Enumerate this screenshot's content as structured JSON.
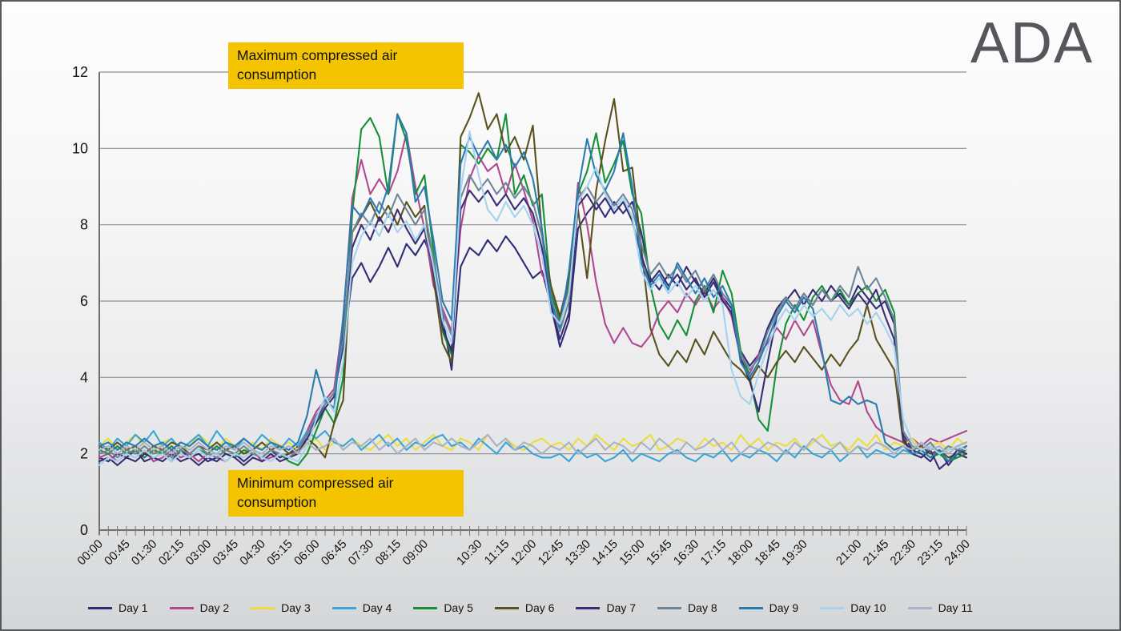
{
  "logo": "ADA",
  "annotations": {
    "max_label": "Maximum compressed air consumption",
    "min_label": "Minimum compressed air consumption"
  },
  "chart_data": {
    "type": "line",
    "title": "",
    "xlabel": "",
    "ylabel": "",
    "ylim": [
      0,
      12
    ],
    "y_ticks": [
      0,
      2,
      4,
      6,
      8,
      10,
      12
    ],
    "grid": true,
    "legend_position": "bottom",
    "x_points": 97,
    "x_tick_interval_minutes": 15,
    "x_labels": [
      "00:00",
      "00:45",
      "01:30",
      "02:15",
      "03:00",
      "03:45",
      "04:30",
      "05:15",
      "06:00",
      "06:45",
      "07:30",
      "08:15",
      "09:00",
      "10:30",
      "11:15",
      "12:00",
      "12:45",
      "13:30",
      "14:15",
      "15:00",
      "15:45",
      "16:30",
      "17:15",
      "18:00",
      "18:45",
      "19:30",
      "21:00",
      "21:45",
      "22:30",
      "23:15",
      "24:00"
    ],
    "x_label_positions": [
      0,
      3,
      6,
      9,
      12,
      15,
      18,
      21,
      24,
      27,
      30,
      33,
      36,
      42,
      45,
      48,
      51,
      54,
      57,
      60,
      63,
      66,
      69,
      72,
      75,
      78,
      84,
      87,
      90,
      93,
      96
    ],
    "series": [
      {
        "name": "Day 1",
        "color": "#2e2e78",
        "values": [
          1.9,
          1.8,
          2.0,
          1.9,
          2.1,
          1.8,
          1.9,
          2.0,
          1.8,
          2.1,
          1.9,
          2.0,
          1.8,
          1.9,
          2.1,
          2.0,
          1.8,
          2.0,
          1.9,
          2.1,
          1.9,
          2.0,
          2.2,
          2.5,
          2.9,
          3.3,
          3.6,
          4.8,
          6.6,
          7.0,
          6.5,
          6.9,
          7.4,
          6.9,
          7.5,
          7.2,
          7.6,
          7.0,
          5.6,
          4.2,
          6.9,
          7.4,
          7.2,
          7.6,
          7.3,
          7.7,
          7.4,
          7.0,
          6.6,
          6.8,
          5.9,
          4.8,
          5.5,
          7.9,
          8.3,
          8.6,
          8.2,
          8.6,
          8.3,
          8.6,
          7.8,
          6.6,
          6.3,
          6.7,
          6.4,
          6.9,
          6.5,
          6.2,
          6.6,
          6.1,
          5.8,
          4.7,
          4.3,
          4.6,
          5.3,
          5.8,
          6.1,
          5.8,
          6.2,
          5.9,
          6.3,
          6.0,
          6.2,
          5.9,
          6.4,
          6.1,
          5.8,
          6.0,
          5.4,
          2.5,
          2.1,
          2.0,
          1.8,
          2.1,
          1.7,
          2.0,
          1.9
        ]
      },
      {
        "name": "Day 2",
        "color": "#b0488f",
        "values": [
          1.9,
          2.0,
          1.8,
          2.0,
          1.9,
          2.1,
          1.8,
          1.9,
          2.1,
          1.9,
          2.0,
          1.8,
          2.0,
          1.9,
          1.8,
          2.0,
          1.9,
          2.1,
          1.8,
          1.9,
          2.0,
          1.9,
          2.1,
          2.6,
          3.1,
          3.4,
          3.7,
          5.5,
          8.7,
          9.7,
          8.8,
          9.2,
          8.8,
          9.4,
          10.4,
          9.0,
          7.9,
          6.4,
          5.8,
          5.2,
          7.9,
          9.2,
          9.8,
          9.4,
          9.6,
          8.8,
          9.6,
          8.9,
          8.1,
          6.7,
          6.3,
          5.4,
          6.4,
          9.1,
          8.0,
          6.5,
          5.4,
          4.9,
          5.3,
          4.9,
          4.8,
          5.1,
          5.7,
          6.0,
          5.7,
          6.2,
          5.9,
          6.3,
          5.8,
          6.1,
          5.6,
          4.5,
          4.1,
          4.6,
          4.9,
          5.3,
          5.0,
          5.5,
          5.1,
          5.5,
          4.6,
          3.8,
          3.4,
          3.3,
          3.9,
          3.1,
          2.7,
          2.5,
          2.4,
          2.3,
          2.4,
          2.2,
          2.4,
          2.3,
          2.4,
          2.5,
          2.6
        ]
      },
      {
        "name": "Day 3",
        "color": "#ecdd3c",
        "values": [
          2.2,
          2.4,
          2.1,
          2.3,
          2.5,
          2.2,
          2.0,
          2.3,
          2.4,
          2.1,
          2.2,
          2.5,
          2.3,
          2.1,
          2.4,
          2.2,
          2.0,
          2.3,
          2.1,
          2.4,
          2.2,
          2.3,
          2.1,
          2.2,
          2.4,
          2.1,
          2.3,
          2.2,
          2.4,
          2.2,
          2.1,
          2.3,
          2.5,
          2.2,
          2.4,
          2.1,
          2.3,
          2.5,
          2.2,
          2.1,
          2.4,
          2.3,
          2.1,
          2.5,
          2.2,
          2.4,
          2.2,
          2.1,
          2.3,
          2.4,
          2.2,
          2.3,
          2.1,
          2.4,
          2.2,
          2.5,
          2.3,
          2.1,
          2.4,
          2.2,
          2.3,
          2.5,
          2.1,
          2.2,
          2.4,
          2.3,
          2.1,
          2.4,
          2.2,
          2.3,
          2.1,
          2.5,
          2.2,
          2.4,
          2.1,
          2.3,
          2.2,
          2.4,
          2.1,
          2.3,
          2.5,
          2.2,
          2.3,
          2.1,
          2.4,
          2.2,
          2.5,
          2.1,
          2.3,
          2.2,
          2.4,
          2.1,
          2.2,
          2.3,
          2.1,
          2.4,
          2.2
        ]
      },
      {
        "name": "Day 4",
        "color": "#3ba4d8",
        "values": [
          2.3,
          2.1,
          2.4,
          2.2,
          2.5,
          2.3,
          2.6,
          2.2,
          2.4,
          2.1,
          2.3,
          2.5,
          2.2,
          2.6,
          2.3,
          2.1,
          2.4,
          2.2,
          2.5,
          2.3,
          2.1,
          2.4,
          2.2,
          2.6,
          2.4,
          2.6,
          2.3,
          2.2,
          2.4,
          2.1,
          2.3,
          2.5,
          2.2,
          2.4,
          2.1,
          2.3,
          2.2,
          2.4,
          2.5,
          2.2,
          2.3,
          2.1,
          2.4,
          2.2,
          2.0,
          2.3,
          2.1,
          2.2,
          2.0,
          1.9,
          1.9,
          2.0,
          1.8,
          2.1,
          1.9,
          2.0,
          1.8,
          1.9,
          2.1,
          1.8,
          2.0,
          1.9,
          1.8,
          2.0,
          2.1,
          1.9,
          1.8,
          2.0,
          1.9,
          2.1,
          1.8,
          2.0,
          1.9,
          2.1,
          2.0,
          1.8,
          2.1,
          1.9,
          2.2,
          2.0,
          1.9,
          2.1,
          1.8,
          2.0,
          2.2,
          1.9,
          2.1,
          2.0,
          1.9,
          2.1,
          2.0,
          1.9,
          2.2,
          2.0,
          2.1,
          2.2,
          2.3
        ]
      },
      {
        "name": "Day 5",
        "color": "#169038",
        "values": [
          2.1,
          2.0,
          2.2,
          2.0,
          2.1,
          1.9,
          2.1,
          2.0,
          2.2,
          2.0,
          1.9,
          2.1,
          2.0,
          2.2,
          2.0,
          1.9,
          2.1,
          2.0,
          1.9,
          2.1,
          2.0,
          1.8,
          1.7,
          2.0,
          2.6,
          3.2,
          2.8,
          4.0,
          8.3,
          10.5,
          10.8,
          10.3,
          8.8,
          10.9,
          10.2,
          8.8,
          9.3,
          7.3,
          5.2,
          4.6,
          10.1,
          9.9,
          9.6,
          10.0,
          9.7,
          10.9,
          8.8,
          9.3,
          8.5,
          8.8,
          6.2,
          5.5,
          6.5,
          8.8,
          9.4,
          10.4,
          9.1,
          9.6,
          10.2,
          8.8,
          8.3,
          6.4,
          5.4,
          5.0,
          5.5,
          5.1,
          6.0,
          6.4,
          5.7,
          6.8,
          6.2,
          4.7,
          4.0,
          2.9,
          2.6,
          4.3,
          5.4,
          5.9,
          5.5,
          6.1,
          6.4,
          6.0,
          6.3,
          5.9,
          6.2,
          6.4,
          6.0,
          6.3,
          5.7,
          2.4,
          2.0,
          2.1,
          1.9,
          2.0,
          1.8,
          1.9,
          2.0
        ]
      },
      {
        "name": "Day 6",
        "color": "#5a521e",
        "values": [
          2.2,
          2.1,
          2.3,
          2.1,
          2.2,
          2.0,
          2.2,
          2.1,
          2.3,
          2.2,
          2.0,
          2.2,
          2.1,
          2.3,
          2.1,
          2.2,
          2.0,
          2.1,
          2.3,
          2.1,
          2.2,
          2.0,
          2.1,
          2.4,
          2.2,
          1.9,
          2.8,
          3.4,
          7.8,
          8.2,
          8.6,
          8.1,
          8.5,
          8.0,
          8.6,
          8.2,
          8.5,
          6.6,
          4.9,
          4.4,
          10.3,
          10.8,
          11.45,
          10.5,
          10.9,
          9.9,
          10.3,
          9.7,
          10.6,
          7.8,
          6.4,
          5.6,
          6.6,
          8.4,
          6.6,
          8.9,
          10.2,
          11.3,
          9.4,
          9.5,
          7.4,
          5.3,
          4.6,
          4.3,
          4.7,
          4.4,
          5.0,
          4.6,
          5.2,
          4.8,
          4.4,
          4.2,
          3.9,
          4.3,
          4.0,
          4.4,
          4.7,
          4.4,
          4.8,
          4.5,
          4.2,
          4.6,
          4.3,
          4.7,
          5.0,
          5.9,
          5.0,
          4.6,
          4.2,
          2.3,
          2.1,
          2.2,
          2.0,
          2.1,
          1.9,
          2.0,
          2.1
        ]
      },
      {
        "name": "Day 7",
        "color": "#382c74",
        "values": [
          1.8,
          1.9,
          1.7,
          1.9,
          1.8,
          2.0,
          1.9,
          1.8,
          2.0,
          1.8,
          1.9,
          1.7,
          1.9,
          1.8,
          2.0,
          1.9,
          1.7,
          1.9,
          1.8,
          2.0,
          1.8,
          1.9,
          2.0,
          2.4,
          2.8,
          3.2,
          3.5,
          5.2,
          7.4,
          8.0,
          7.6,
          8.2,
          7.8,
          8.4,
          7.9,
          7.5,
          7.9,
          6.8,
          5.3,
          4.7,
          8.4,
          8.9,
          8.6,
          8.9,
          8.5,
          8.8,
          8.4,
          8.7,
          8.3,
          7.4,
          5.9,
          5.0,
          5.7,
          8.5,
          8.8,
          8.4,
          8.7,
          8.3,
          8.6,
          8.1,
          7.2,
          6.5,
          6.8,
          6.4,
          6.7,
          6.3,
          6.6,
          6.1,
          6.5,
          6.0,
          5.7,
          4.5,
          3.9,
          3.1,
          4.4,
          5.6,
          6.0,
          6.3,
          5.9,
          6.3,
          6.0,
          6.4,
          6.1,
          5.8,
          6.2,
          5.9,
          6.3,
          5.6,
          5.0,
          2.4,
          2.0,
          1.9,
          2.1,
          1.6,
          1.8,
          2.1,
          2.0
        ]
      },
      {
        "name": "Day 8",
        "color": "#6d8598",
        "values": [
          2.0,
          2.1,
          1.9,
          2.1,
          2.0,
          2.2,
          2.0,
          2.1,
          1.9,
          2.1,
          2.0,
          2.2,
          2.0,
          1.9,
          2.1,
          2.0,
          2.2,
          2.0,
          1.9,
          2.1,
          2.0,
          1.9,
          2.1,
          2.5,
          3.0,
          3.3,
          3.6,
          5.0,
          7.8,
          8.3,
          8.0,
          8.6,
          8.2,
          8.8,
          8.4,
          8.0,
          8.4,
          7.1,
          5.7,
          5.1,
          8.7,
          9.3,
          8.9,
          9.2,
          8.8,
          9.1,
          8.7,
          9.0,
          8.6,
          7.7,
          6.1,
          5.2,
          6.0,
          8.7,
          9.0,
          8.6,
          8.9,
          8.5,
          8.8,
          8.4,
          7.5,
          6.7,
          7.0,
          6.6,
          6.9,
          6.5,
          6.8,
          6.3,
          6.7,
          6.2,
          5.9,
          4.6,
          4.2,
          4.5,
          5.2,
          5.7,
          6.1,
          5.8,
          6.2,
          5.9,
          6.3,
          6.0,
          6.4,
          6.1,
          6.9,
          6.3,
          6.6,
          6.1,
          5.5,
          2.6,
          2.2,
          2.1,
          2.3,
          2.0,
          2.2,
          2.1,
          2.2
        ]
      },
      {
        "name": "Day 9",
        "color": "#2a7cb0",
        "values": [
          2.2,
          2.3,
          2.1,
          2.3,
          2.2,
          2.4,
          2.2,
          2.3,
          2.1,
          2.3,
          2.2,
          2.4,
          2.2,
          2.1,
          2.3,
          2.2,
          2.4,
          2.2,
          2.1,
          2.3,
          2.2,
          2.1,
          2.3,
          3.0,
          4.2,
          3.4,
          3.2,
          5.6,
          8.5,
          8.2,
          8.7,
          8.3,
          9.0,
          10.9,
          10.4,
          8.6,
          9.0,
          7.6,
          6.0,
          5.5,
          9.6,
          10.3,
          9.8,
          10.2,
          9.7,
          10.1,
          9.5,
          9.9,
          9.2,
          7.9,
          6.0,
          5.3,
          6.8,
          8.9,
          10.25,
          9.3,
          8.9,
          9.4,
          10.4,
          9.0,
          7.0,
          6.4,
          6.7,
          6.3,
          7.0,
          6.6,
          6.2,
          6.6,
          6.1,
          6.4,
          5.9,
          4.4,
          4.0,
          4.4,
          5.0,
          5.6,
          6.0,
          5.7,
          6.1,
          5.8,
          4.7,
          3.4,
          3.3,
          3.5,
          3.3,
          3.4,
          3.3,
          2.3,
          2.1,
          2.2,
          2.0,
          2.1,
          1.9,
          2.1,
          1.8,
          2.0,
          2.2
        ]
      },
      {
        "name": "Day 10",
        "color": "#a5d2ee",
        "values": [
          1.7,
          1.9,
          1.8,
          2.0,
          1.9,
          2.1,
          1.9,
          2.0,
          1.8,
          2.0,
          1.9,
          2.1,
          1.9,
          2.0,
          1.8,
          2.0,
          1.9,
          2.1,
          1.9,
          1.8,
          2.0,
          1.9,
          1.8,
          2.2,
          2.9,
          3.5,
          3.1,
          4.4,
          7.0,
          7.7,
          8.1,
          7.7,
          8.3,
          7.8,
          8.1,
          7.6,
          8.0,
          6.9,
          5.5,
          4.9,
          8.9,
          10.45,
          9.3,
          8.4,
          8.1,
          8.6,
          8.2,
          8.5,
          8.0,
          7.2,
          5.7,
          5.4,
          6.2,
          8.6,
          9.0,
          9.5,
          8.8,
          8.4,
          8.7,
          8.2,
          6.8,
          6.3,
          6.6,
          6.2,
          6.5,
          6.1,
          6.4,
          6.0,
          6.3,
          5.9,
          4.2,
          3.5,
          3.3,
          4.1,
          4.8,
          5.4,
          5.8,
          5.5,
          5.9,
          5.6,
          5.8,
          5.5,
          5.9,
          5.6,
          5.8,
          5.4,
          5.7,
          5.3,
          4.8,
          2.9,
          2.3,
          2.1,
          2.2,
          2.0,
          2.1,
          2.2,
          2.1
        ]
      },
      {
        "name": "Day 11",
        "color": "#a9b2c6",
        "values": [
          2.1,
          2.2,
          2.0,
          2.2,
          2.1,
          2.3,
          2.1,
          2.2,
          2.0,
          2.2,
          2.1,
          2.3,
          2.1,
          2.0,
          2.2,
          2.1,
          2.3,
          2.1,
          2.0,
          2.2,
          2.1,
          2.2,
          2.0,
          2.3,
          2.1,
          2.2,
          2.4,
          2.1,
          2.3,
          2.2,
          2.4,
          2.1,
          2.3,
          2.0,
          2.2,
          2.4,
          2.1,
          2.3,
          2.2,
          2.4,
          2.2,
          2.1,
          2.3,
          2.5,
          2.2,
          2.4,
          2.1,
          2.3,
          2.2,
          2.0,
          2.2,
          2.1,
          2.3,
          2.0,
          2.2,
          2.4,
          2.1,
          2.3,
          2.2,
          2.0,
          2.3,
          2.1,
          2.4,
          2.2,
          2.0,
          2.3,
          2.1,
          2.2,
          2.4,
          2.1,
          2.3,
          2.0,
          2.2,
          2.1,
          2.3,
          2.2,
          2.0,
          2.3,
          2.1,
          2.4,
          2.2,
          2.1,
          2.3,
          2.0,
          2.2,
          2.1,
          2.3,
          2.2,
          2.0,
          2.2,
          2.1,
          2.3,
          2.1,
          2.2,
          2.0,
          2.2,
          2.3
        ]
      }
    ]
  }
}
